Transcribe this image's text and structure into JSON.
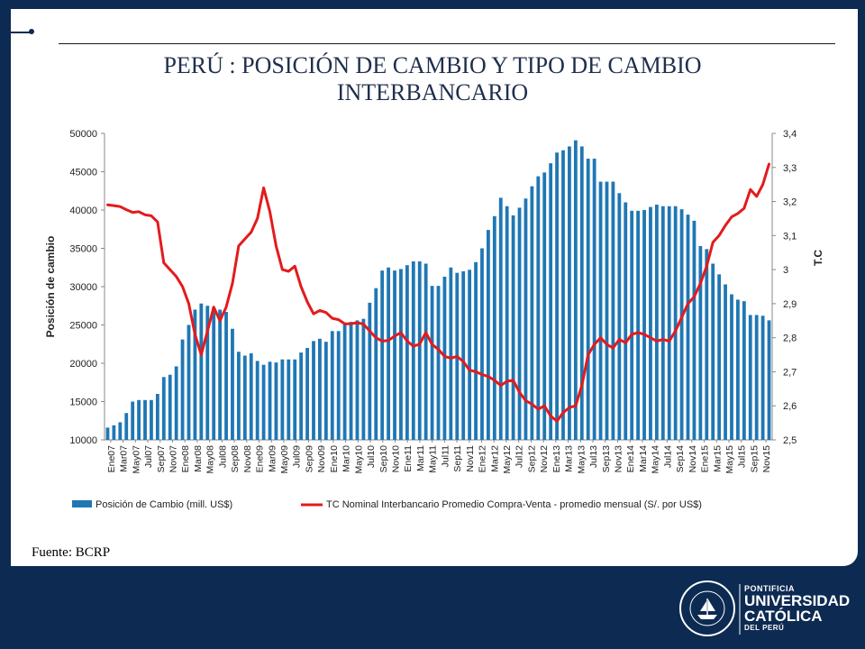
{
  "slide": {
    "title_line1": "PERÚ : POSICIÓN DE CAMBIO Y TIPO DE CAMBIO",
    "title_line2": "INTERBANCARIO",
    "source": "Fuente: BCRP"
  },
  "logo": {
    "line1": "PONTIFICIA",
    "line2": "UNIVERSIDAD",
    "line3": "CATÓLICA",
    "line4": "DEL PERÚ",
    "seal_text": "ET LUX IN TENEBRIS LUCET"
  },
  "colors": {
    "bar": "#1f77b4",
    "line": "#e41a1c",
    "background": "#0d2b52"
  },
  "chart_data": {
    "type": "bar+line",
    "title": "PERÚ : POSICIÓN DE CAMBIO Y TIPO DE CAMBIO INTERBANCARIO",
    "ylabel": "Posición de cambio",
    "y2label": "T.C",
    "ylim": [
      10000,
      50000
    ],
    "y2lim": [
      2.5,
      3.4
    ],
    "yticks": [
      "50000",
      "45000",
      "40000",
      "35000",
      "30000",
      "25000",
      "20000",
      "15000",
      "10000"
    ],
    "y2ticks": [
      "3,4",
      "3,3",
      "3,2",
      "3,1",
      "3",
      "2,9",
      "2,8",
      "2,7",
      "2,6",
      "2,5"
    ],
    "xtick_labels": [
      "Ene07",
      "Mar07",
      "May07",
      "Jul07",
      "Sep07",
      "Nov07",
      "Ene08",
      "Mar08",
      "May08",
      "Jul08",
      "Sep08",
      "Nov08",
      "Ene09",
      "Mar09",
      "May09",
      "Jul09",
      "Sep09",
      "Nov09",
      "Ene10",
      "Mar10",
      "May10",
      "Jul10",
      "Sep10",
      "Nov10",
      "Ene11",
      "Mar11",
      "May11",
      "Jul11",
      "Sep11",
      "Nov11",
      "Ene12",
      "Mar12",
      "May12",
      "Jul12",
      "Sep12",
      "Nov12",
      "Ene13",
      "Mar13",
      "May13",
      "Jul13",
      "Sep13",
      "Nov13",
      "Ene14",
      "Mar14",
      "May14",
      "Jul14",
      "Sep14",
      "Nov14",
      "Ene15",
      "Mar15",
      "May15",
      "Jul15",
      "Sep15",
      "Nov15"
    ],
    "series": [
      {
        "name": "Posición de Cambio (mill. US$)",
        "type": "bar",
        "values": [
          11600,
          11900,
          12300,
          13500,
          15000,
          15200,
          15200,
          15200,
          16000,
          18200,
          18500,
          19600,
          23100,
          25000,
          27000,
          27800,
          27500,
          27300,
          27000,
          26700,
          24500,
          21500,
          21000,
          21300,
          20300,
          19800,
          20200,
          20100,
          20500,
          20500,
          20500,
          21400,
          22000,
          22900,
          23200,
          22800,
          24200,
          24200,
          25100,
          25400,
          25600,
          25800,
          27900,
          29800,
          32100,
          32500,
          32100,
          32300,
          32800,
          33300,
          33300,
          33000,
          30100,
          30100,
          31300,
          32500,
          31800,
          32000,
          32200,
          33200,
          35000,
          37400,
          39200,
          41600,
          40500,
          39300,
          40300,
          41500,
          43100,
          44400,
          44900,
          46100,
          47500,
          47800,
          48300,
          49100,
          48300,
          46700,
          46700,
          43700,
          43700,
          43700,
          42200,
          41000,
          39900,
          39900,
          40000,
          40400,
          40700,
          40500,
          40500,
          40500,
          40100,
          39400,
          38600,
          35300,
          34900,
          33000,
          31600,
          30300,
          29000,
          28300,
          28100,
          26300,
          26300,
          26200,
          25600
        ]
      },
      {
        "name": "TC Nominal Interbancario Promedio Compra-Venta - promedio mensual (S/. por US$)",
        "type": "line",
        "values": [
          3.19,
          3.188,
          3.185,
          3.176,
          3.168,
          3.17,
          3.161,
          3.158,
          3.14,
          3.02,
          3.0,
          2.98,
          2.95,
          2.9,
          2.81,
          2.75,
          2.82,
          2.89,
          2.85,
          2.89,
          2.96,
          3.07,
          3.09,
          3.11,
          3.15,
          3.24,
          3.17,
          3.07,
          3.0,
          2.995,
          3.01,
          2.95,
          2.905,
          2.87,
          2.88,
          2.874,
          2.857,
          2.853,
          2.841,
          2.841,
          2.844,
          2.84,
          2.82,
          2.8,
          2.79,
          2.792,
          2.805,
          2.815,
          2.79,
          2.775,
          2.781,
          2.815,
          2.78,
          2.766,
          2.745,
          2.74,
          2.745,
          2.73,
          2.705,
          2.7,
          2.692,
          2.686,
          2.675,
          2.66,
          2.672,
          2.675,
          2.64,
          2.615,
          2.605,
          2.59,
          2.6,
          2.57,
          2.555,
          2.58,
          2.595,
          2.6,
          2.66,
          2.75,
          2.78,
          2.8,
          2.78,
          2.77,
          2.795,
          2.785,
          2.81,
          2.815,
          2.81,
          2.8,
          2.79,
          2.795,
          2.79,
          2.82,
          2.86,
          2.9,
          2.92,
          2.96,
          3.01,
          3.08,
          3.1,
          3.13,
          3.155,
          3.165,
          3.18,
          3.235,
          3.215,
          3.25,
          3.31
        ]
      }
    ],
    "legend": "bottom"
  }
}
